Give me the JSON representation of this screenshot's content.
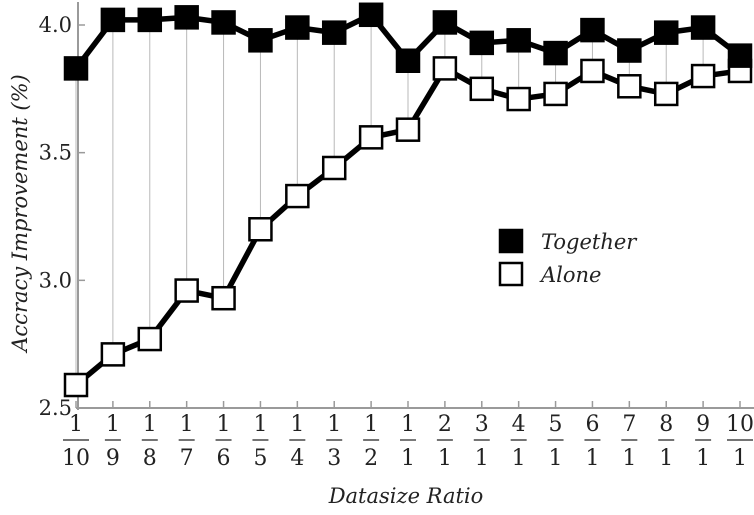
{
  "chart_data": {
    "type": "line",
    "title": "",
    "xlabel": "Datasize Ratio",
    "ylabel": "Accracy Improvement (%)",
    "categories": [
      {
        "num": "1",
        "den": "10"
      },
      {
        "num": "1",
        "den": "9"
      },
      {
        "num": "1",
        "den": "8"
      },
      {
        "num": "1",
        "den": "7"
      },
      {
        "num": "1",
        "den": "6"
      },
      {
        "num": "1",
        "den": "5"
      },
      {
        "num": "1",
        "den": "4"
      },
      {
        "num": "1",
        "den": "3"
      },
      {
        "num": "1",
        "den": "2"
      },
      {
        "num": "1",
        "den": "1"
      },
      {
        "num": "2",
        "den": "1"
      },
      {
        "num": "3",
        "den": "1"
      },
      {
        "num": "4",
        "den": "1"
      },
      {
        "num": "5",
        "den": "1"
      },
      {
        "num": "6",
        "den": "1"
      },
      {
        "num": "7",
        "den": "1"
      },
      {
        "num": "8",
        "den": "1"
      },
      {
        "num": "9",
        "den": "1"
      },
      {
        "num": "10",
        "den": "1"
      }
    ],
    "ylim": [
      2.5,
      4.05
    ],
    "yticks": [
      "2.5",
      "3.0",
      "3.5",
      "4.0"
    ],
    "grid": "vertical drop lines from Together markers to Alone markers",
    "legend_position": "center-right",
    "series": [
      {
        "name": "Together",
        "marker": "filled-square",
        "color": "#000000",
        "fill": "#000000",
        "values": [
          3.83,
          4.02,
          4.02,
          4.03,
          4.01,
          3.94,
          3.99,
          3.97,
          4.04,
          3.86,
          4.01,
          3.93,
          3.94,
          3.89,
          3.98,
          3.9,
          3.97,
          3.99,
          3.88
        ]
      },
      {
        "name": "Alone",
        "marker": "open-square",
        "color": "#000000",
        "fill": "#ffffff",
        "values": [
          2.59,
          2.71,
          2.77,
          2.96,
          2.93,
          3.2,
          3.33,
          3.44,
          3.56,
          3.59,
          3.83,
          3.75,
          3.71,
          3.73,
          3.82,
          3.76,
          3.73,
          3.8,
          3.82
        ]
      }
    ]
  }
}
